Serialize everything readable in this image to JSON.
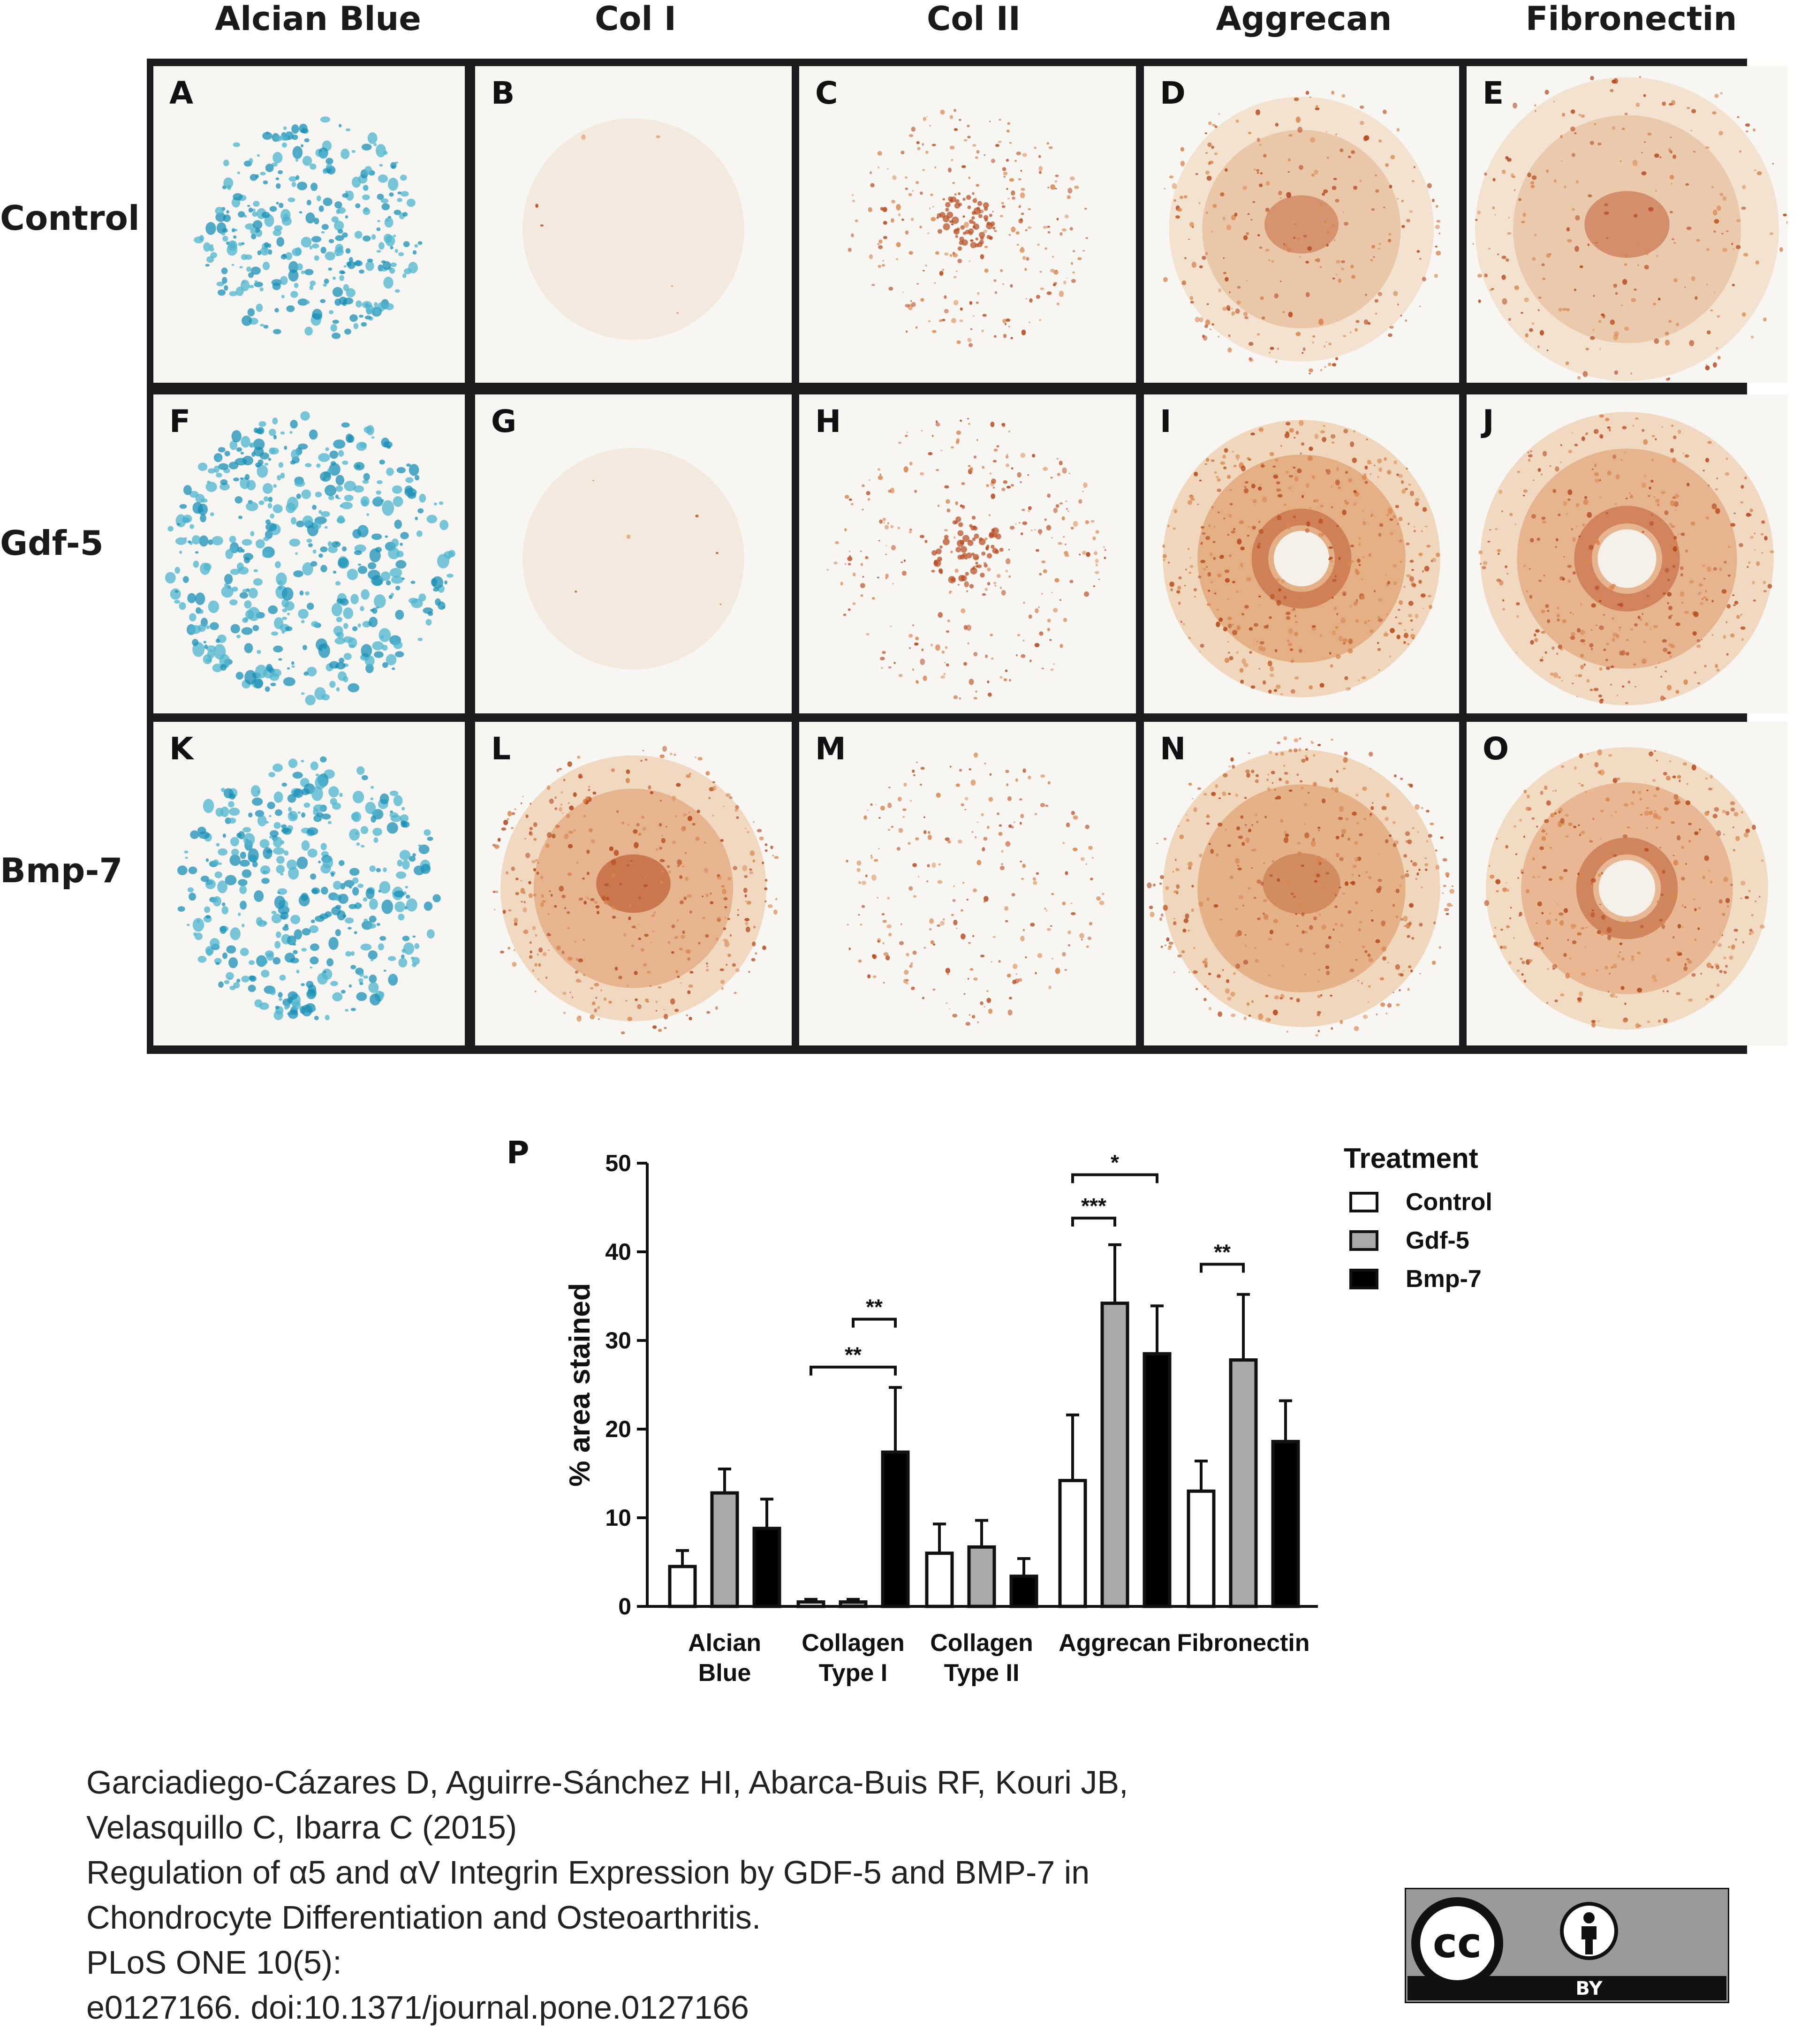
{
  "columns": [
    "Alcian Blue",
    "Col I",
    "Col II",
    "Aggrecan",
    "Fibronectin"
  ],
  "rows": [
    "Control",
    "Gdf-5",
    "Bmp-7"
  ],
  "panels": [
    {
      "letter": "A",
      "stain": "blue",
      "pattern": "spots",
      "radius": 0.36,
      "density": 0.55,
      "center_dark": 0.0
    },
    {
      "letter": "B",
      "stain": "brown",
      "pattern": "faint",
      "radius": 0.35,
      "density": 0.04,
      "center_dark": 0.0
    },
    {
      "letter": "C",
      "stain": "brown",
      "pattern": "dots",
      "radius": 0.38,
      "density": 0.35,
      "center_dark": 0.7
    },
    {
      "letter": "D",
      "stain": "brown",
      "pattern": "halo",
      "radius": 0.42,
      "density": 0.35,
      "center_dark": 0.4
    },
    {
      "letter": "E",
      "stain": "brown",
      "pattern": "halo",
      "radius": 0.48,
      "density": 0.3,
      "center_dark": 0.5
    },
    {
      "letter": "F",
      "stain": "blue",
      "pattern": "spots",
      "radius": 0.46,
      "density": 0.9,
      "center_dark": 0.0
    },
    {
      "letter": "G",
      "stain": "brown",
      "pattern": "faint",
      "radius": 0.35,
      "density": 0.05,
      "center_dark": 0.0
    },
    {
      "letter": "H",
      "stain": "brown",
      "pattern": "dots",
      "radius": 0.44,
      "density": 0.45,
      "center_dark": 0.1
    },
    {
      "letter": "I",
      "stain": "brown",
      "pattern": "ring",
      "radius": 0.44,
      "density": 0.85,
      "center_dark": 0.0
    },
    {
      "letter": "J",
      "stain": "brown",
      "pattern": "ring",
      "radius": 0.46,
      "density": 0.7,
      "center_dark": 0.0
    },
    {
      "letter": "K",
      "stain": "blue",
      "pattern": "spots",
      "radius": 0.42,
      "density": 0.75,
      "center_dark": 0.0
    },
    {
      "letter": "L",
      "stain": "brown",
      "pattern": "halo",
      "radius": 0.42,
      "density": 0.7,
      "center_dark": 0.8
    },
    {
      "letter": "M",
      "stain": "brown",
      "pattern": "dots",
      "radius": 0.42,
      "density": 0.3,
      "center_dark": 0.0
    },
    {
      "letter": "N",
      "stain": "brown",
      "pattern": "halo",
      "radius": 0.44,
      "density": 0.8,
      "center_dark": 0.3
    },
    {
      "letter": "O",
      "stain": "brown",
      "pattern": "ring",
      "radius": 0.44,
      "density": 0.65,
      "center_dark": 0.0
    }
  ],
  "chart_data": {
    "type": "bar",
    "panel_letter": "P",
    "ylabel": "% area stained",
    "ylim": [
      0,
      50
    ],
    "yticks": [
      0,
      10,
      20,
      30,
      40,
      50
    ],
    "categories": [
      "Alcian\nBlue",
      "Collagen\nType I",
      "Collagen\nType II",
      "Aggrecan",
      "Fibronectin"
    ],
    "legend_title": "Treatment",
    "legend_position": "top-right",
    "series": [
      {
        "name": "Control",
        "fill": "#ffffff",
        "values": [
          4.5,
          0.5,
          6.0,
          14.2,
          13.0
        ],
        "errors": [
          1.8,
          0.3,
          3.3,
          7.4,
          3.4
        ]
      },
      {
        "name": "Gdf-5",
        "fill": "#a8a8a8",
        "values": [
          12.8,
          0.5,
          6.7,
          34.2,
          27.8
        ],
        "errors": [
          2.7,
          0.3,
          3.0,
          6.6,
          7.4
        ]
      },
      {
        "name": "Bmp-7",
        "fill": "#000000",
        "values": [
          8.8,
          17.4,
          3.4,
          28.5,
          18.6
        ],
        "errors": [
          3.3,
          7.3,
          2.0,
          5.4,
          4.6
        ]
      }
    ],
    "significance": [
      {
        "category": 1,
        "from": 1,
        "to": 2,
        "y": 32.4,
        "label": "**"
      },
      {
        "category": 1,
        "from": 0,
        "to": 2,
        "y": 27.0,
        "label": "**"
      },
      {
        "category": 3,
        "from": 0,
        "to": 2,
        "y": 48.7,
        "label": "*"
      },
      {
        "category": 3,
        "from": 0,
        "to": 1,
        "y": 43.8,
        "label": "***"
      },
      {
        "category": 4,
        "from": 0,
        "to": 1,
        "y": 38.6,
        "label": "**"
      }
    ]
  },
  "citation": {
    "lines": [
      "Garciadiego-Cázares D, Aguirre-Sánchez HI, Abarca-Buis RF, Kouri JB,",
      "Velasquillo C, Ibarra C (2015)",
      "Regulation of α5 and αV Integrin Expression by GDF-5 and BMP-7 in",
      "Chondrocyte Differentiation and Osteoarthritis.",
      "PLoS ONE 10(5):",
      "e0127166. doi:10.1371/journal.pone.0127166"
    ]
  },
  "license": {
    "cc_text": "cc",
    "by_text": "BY"
  }
}
